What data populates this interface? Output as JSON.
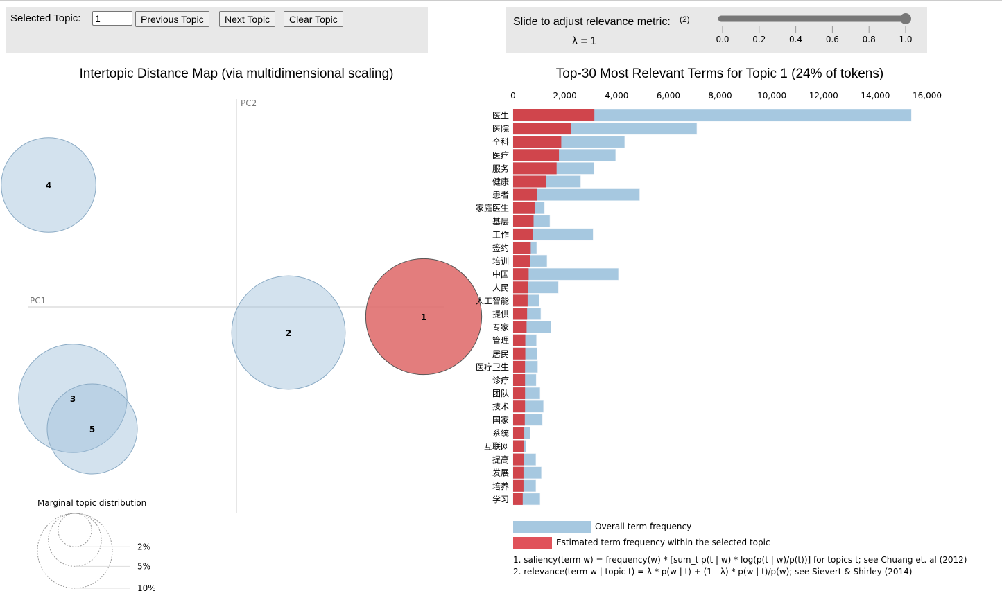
{
  "controls": {
    "selected_topic_label": "Selected Topic:",
    "selected_topic_value": "1",
    "previous_label": "Previous Topic",
    "next_label": "Next Topic",
    "clear_label": "Clear Topic",
    "slider_label": "Slide to adjust relevance metric:",
    "slider_footnote": "(2)",
    "lambda_text": "λ = 1",
    "lambda_value": 1,
    "slider_ticks": [
      "0.0",
      "0.2",
      "0.4",
      "0.6",
      "0.8",
      "1.0"
    ]
  },
  "colors": {
    "overall": "#a6c8e0",
    "topic": "#d0454c",
    "selected_circle": "#e06f6f",
    "circle": "#c9dcea"
  },
  "chart_data": [
    {
      "type": "scatter",
      "title": "Intertopic Distance Map (via multidimensional scaling)",
      "xlabel": "PC1",
      "ylabel": "PC2",
      "selected_topic": 1,
      "topics": [
        {
          "id": "1",
          "marginal_pct": 24
        },
        {
          "id": "2",
          "marginal_pct": 23
        },
        {
          "id": "3",
          "marginal_pct": 21
        },
        {
          "id": "4",
          "marginal_pct": 16
        },
        {
          "id": "5",
          "marginal_pct": 14.5
        }
      ],
      "marginal_legend": {
        "title": "Marginal topic distribution",
        "sizes": [
          "2%",
          "5%",
          "10%"
        ]
      }
    },
    {
      "type": "bar",
      "title": "Top-30 Most Relevant Terms for Topic 1 (24% of tokens)",
      "xlim": [
        0,
        16000
      ],
      "x_ticks": [
        "0",
        "2,000",
        "4,000",
        "6,000",
        "8,000",
        "10,000",
        "12,000",
        "14,000",
        "16,000"
      ],
      "categories": [
        "医生",
        "医院",
        "全科",
        "医疗",
        "服务",
        "健康",
        "患者",
        "家庭医生",
        "基层",
        "工作",
        "签约",
        "培训",
        "中国",
        "人民",
        "人工智能",
        "提供",
        "专家",
        "管理",
        "居民",
        "医疗卫生",
        "诊疗",
        "团队",
        "技术",
        "国家",
        "系统",
        "互联网",
        "提高",
        "发展",
        "培养",
        "学习"
      ],
      "series": [
        {
          "name": "Overall term frequency",
          "values": [
            15390,
            7100,
            4310,
            3960,
            3130,
            2610,
            4890,
            1210,
            1420,
            3090,
            910,
            1310,
            4070,
            1750,
            1000,
            1070,
            1460,
            900,
            930,
            950,
            890,
            1040,
            1170,
            1130,
            660,
            500,
            880,
            1090,
            880,
            1040
          ]
        },
        {
          "name": "Estimated term frequency within the selected topic",
          "values": [
            3140,
            2250,
            1860,
            1770,
            1680,
            1280,
            920,
            830,
            790,
            750,
            680,
            670,
            600,
            590,
            560,
            540,
            520,
            470,
            470,
            460,
            460,
            460,
            460,
            450,
            430,
            410,
            410,
            400,
            400,
            370
          ]
        }
      ],
      "footnotes": [
        "1. saliency(term w) = frequency(w) * [sum_t p(t | w) * log(p(t | w)/p(t))] for topics t; see Chuang et. al (2012)",
        "2. relevance(term w | topic t) = λ * p(w | t) + (1 - λ) * p(w | t)/p(w); see Sievert & Shirley (2014)"
      ]
    }
  ]
}
